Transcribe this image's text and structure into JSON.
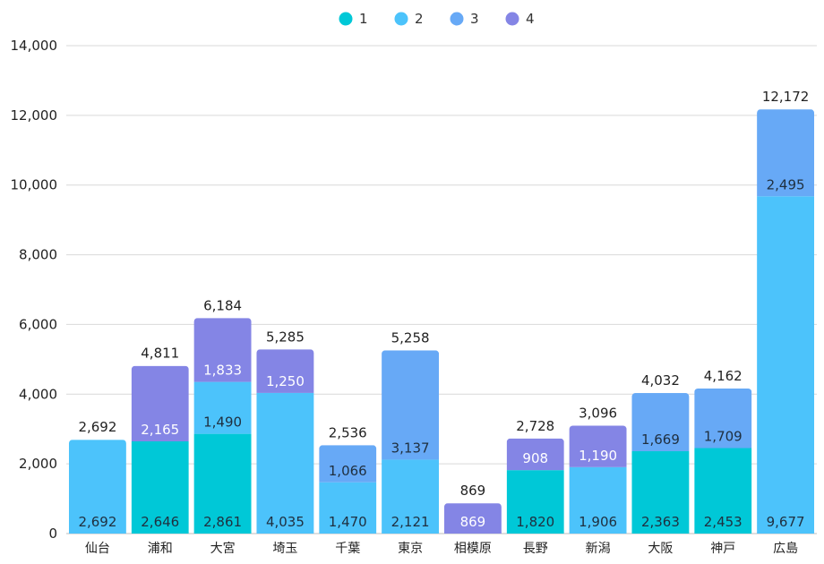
{
  "chart_data": {
    "type": "bar",
    "stacked": true,
    "categories": [
      "仙台",
      "浦和",
      "大宮",
      "埼玉",
      "千葉",
      "東京",
      "相模原",
      "長野",
      "新潟",
      "大阪",
      "神戸",
      "広島"
    ],
    "series": [
      {
        "name": "1",
        "color": "#00C8D7",
        "values": [
          null,
          2646,
          2861,
          null,
          null,
          null,
          null,
          1820,
          null,
          2363,
          2453,
          null
        ]
      },
      {
        "name": "2",
        "color": "#4CC3FB",
        "values": [
          2692,
          null,
          1490,
          4035,
          1470,
          2121,
          null,
          null,
          1906,
          null,
          null,
          9677
        ]
      },
      {
        "name": "3",
        "color": "#67A9F6",
        "values": [
          null,
          null,
          null,
          null,
          1066,
          3137,
          null,
          null,
          null,
          1669,
          1709,
          2495
        ]
      },
      {
        "name": "4",
        "color": "#8485E5",
        "values": [
          null,
          2165,
          1833,
          1250,
          null,
          null,
          869,
          908,
          1190,
          null,
          null,
          null
        ]
      }
    ],
    "segment_labels": [
      [
        null,
        "2,646",
        "2,861",
        null,
        null,
        null,
        null,
        "1,820",
        null,
        "2,363",
        "2,453",
        null
      ],
      [
        "2,692",
        null,
        "1,490",
        "4,035",
        "1,470",
        "2,121",
        null,
        null,
        "1,906",
        null,
        null,
        "9,677"
      ],
      [
        null,
        null,
        null,
        null,
        "1,066",
        "3,137",
        null,
        null,
        null,
        "1,669",
        "1,709",
        "2,495"
      ],
      [
        null,
        "2,165",
        "1,833",
        "1,250",
        null,
        null,
        "869",
        "908",
        "1,190",
        null,
        null,
        null
      ]
    ],
    "totals": [
      2692,
      4811,
      6184,
      5285,
      2536,
      5258,
      869,
      2728,
      3096,
      4032,
      4162,
      12172
    ],
    "total_labels": [
      "2,692",
      "4,811",
      "6,184",
      "5,285",
      "2,536",
      "5,258",
      "869",
      "2,728",
      "3,096",
      "4,032",
      "4,162",
      "12,172"
    ],
    "ylim": [
      0,
      14000
    ],
    "y_ticks": [
      0,
      2000,
      4000,
      6000,
      8000,
      10000,
      12000,
      14000
    ],
    "y_tick_labels": [
      "0",
      "2,000",
      "4,000",
      "6,000",
      "8,000",
      "10,000",
      "12,000",
      "14,000"
    ],
    "grid": true,
    "legend_position": "top-center",
    "title": "",
    "xlabel": "",
    "ylabel": ""
  }
}
